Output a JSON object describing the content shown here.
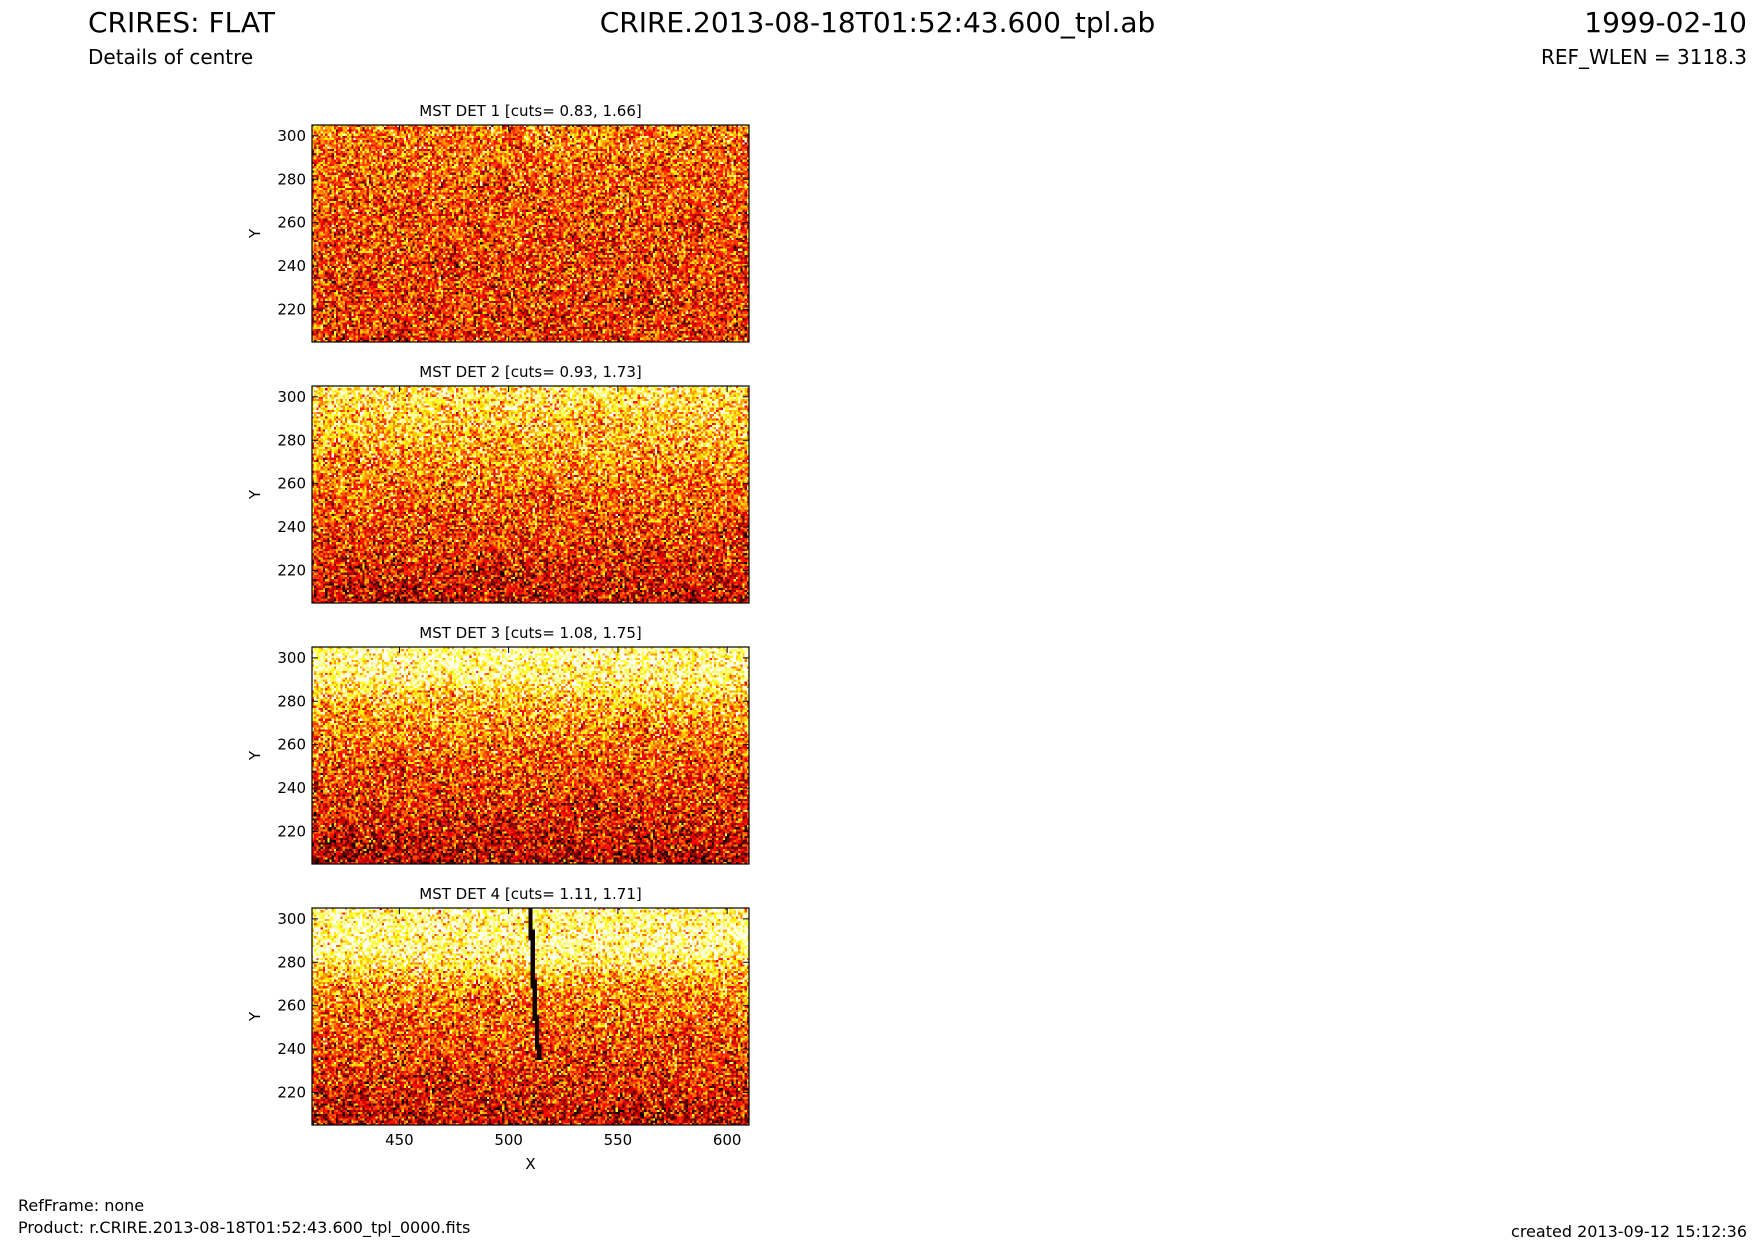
{
  "header": {
    "title": "CRIRES: FLAT",
    "subtitle": "Details of centre",
    "center": "CRIRE.2013-08-18T01:52:43.600_tpl.ab",
    "date": "1999-02-10",
    "ref_wlen": "REF_WLEN = 3118.3"
  },
  "footer": {
    "refframe": "RefFrame: none",
    "product": "Product: r.CRIRE.2013-08-18T01:52:43.600_tpl_0000.fits",
    "created": "created 2013-09-12 15:12:36"
  },
  "colors": {
    "colormap": "hot",
    "axes": "#000000"
  },
  "chart_data": [
    {
      "type": "heatmap",
      "title": "MST DET 1 [cuts= 0.83, 1.66]",
      "cuts": [
        0.83,
        1.66
      ],
      "xlim": [
        410,
        610
      ],
      "ylim": [
        205,
        305
      ],
      "xticks": [
        450,
        500,
        550,
        600
      ],
      "yticks": [
        220,
        240,
        260,
        280,
        300
      ],
      "xlabel": "",
      "ylabel": "Y",
      "row_brightness": {
        "y": [
          205,
          230,
          255,
          280,
          305
        ],
        "level": [
          0.42,
          0.44,
          0.46,
          0.5,
          0.56
        ]
      }
    },
    {
      "type": "heatmap",
      "title": "MST DET 2 [cuts= 0.93, 1.73]",
      "cuts": [
        0.93,
        1.73
      ],
      "xlim": [
        410,
        610
      ],
      "ylim": [
        205,
        305
      ],
      "xticks": [
        450,
        500,
        550,
        600
      ],
      "yticks": [
        220,
        240,
        260,
        280,
        300
      ],
      "xlabel": "",
      "ylabel": "Y",
      "row_brightness": {
        "y": [
          205,
          230,
          255,
          280,
          305
        ],
        "level": [
          0.3,
          0.42,
          0.52,
          0.66,
          0.82
        ]
      }
    },
    {
      "type": "heatmap",
      "title": "MST DET 3 [cuts= 1.08, 1.75]",
      "cuts": [
        1.08,
        1.75
      ],
      "xlim": [
        410,
        610
      ],
      "ylim": [
        205,
        305
      ],
      "xticks": [
        450,
        500,
        550,
        600
      ],
      "yticks": [
        220,
        240,
        260,
        280,
        300
      ],
      "xlabel": "",
      "ylabel": "Y",
      "row_brightness": {
        "y": [
          205,
          230,
          255,
          280,
          290,
          305
        ],
        "level": [
          0.26,
          0.4,
          0.5,
          0.68,
          0.86,
          0.92
        ]
      }
    },
    {
      "type": "heatmap",
      "title": "MST DET 4 [cuts= 1.11, 1.71]",
      "cuts": [
        1.11,
        1.71
      ],
      "xlim": [
        410,
        610
      ],
      "ylim": [
        205,
        305
      ],
      "xticks": [
        450,
        500,
        550,
        600
      ],
      "yticks": [
        220,
        240,
        260,
        280,
        300
      ],
      "xlabel": "X",
      "ylabel": "Y",
      "row_brightness": {
        "y": [
          205,
          230,
          255,
          270,
          285,
          305
        ],
        "level": [
          0.3,
          0.42,
          0.52,
          0.62,
          0.9,
          0.88
        ]
      },
      "dark_line": {
        "x": [
          510,
          511,
          512,
          514
        ],
        "y": [
          305,
          280,
          260,
          235
        ]
      }
    }
  ]
}
